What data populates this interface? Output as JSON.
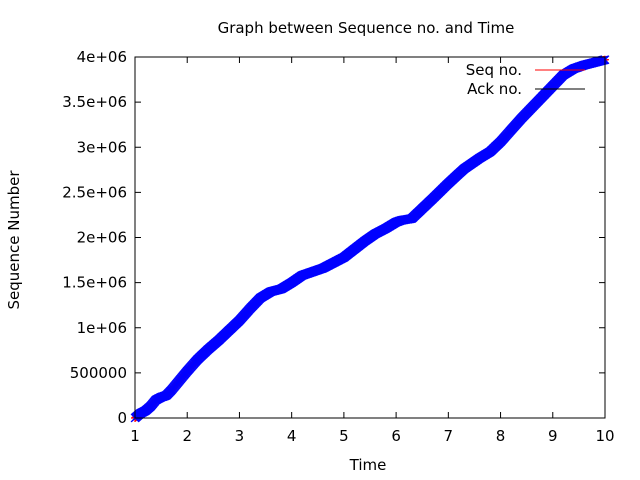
{
  "chart_data": {
    "type": "scatter",
    "title": "Graph between Sequence no. and Time",
    "xlabel": "Time",
    "ylabel": "Sequence Number",
    "xlim": [
      1,
      10
    ],
    "ylim": [
      0,
      4000000
    ],
    "x_ticks": [
      1,
      2,
      3,
      4,
      5,
      6,
      7,
      8,
      9,
      10
    ],
    "x_tick_labels": [
      "1",
      "2",
      "3",
      "4",
      "5",
      "6",
      "7",
      "8",
      "9",
      "10"
    ],
    "y_ticks": [
      0,
      500000,
      1000000,
      1500000,
      2000000,
      2500000,
      3000000,
      3500000,
      4000000
    ],
    "y_tick_labels": [
      "0",
      "500000",
      "1e+06",
      "1.5e+06",
      "2e+06",
      "2.5e+06",
      "3e+06",
      "3.5e+06",
      "4e+06"
    ],
    "grid": false,
    "legend_position": "top-right",
    "series": [
      {
        "name": "Seq no.",
        "color": "#ff0000",
        "marker": "plus",
        "x": [
          1.0,
          1.1,
          1.2,
          1.3,
          1.4,
          1.5,
          1.6,
          1.7,
          1.8,
          1.9,
          2.0,
          2.2,
          2.4,
          2.6,
          2.8,
          3.0,
          3.2,
          3.4,
          3.6,
          3.8,
          4.0,
          4.2,
          4.4,
          4.6,
          4.8,
          5.0,
          5.2,
          5.4,
          5.6,
          5.8,
          6.0,
          6.1,
          6.3,
          6.5,
          6.7,
          7.0,
          7.3,
          7.6,
          7.8,
          8.0,
          8.2,
          8.4,
          8.6,
          8.8,
          9.0,
          9.2,
          9.4,
          9.6,
          9.8,
          10.0
        ],
        "y": [
          0,
          50000,
          80000,
          130000,
          200000,
          230000,
          250000,
          310000,
          380000,
          450000,
          520000,
          650000,
          760000,
          860000,
          970000,
          1080000,
          1210000,
          1330000,
          1400000,
          1430000,
          1500000,
          1580000,
          1620000,
          1660000,
          1720000,
          1780000,
          1870000,
          1960000,
          2040000,
          2100000,
          2170000,
          2190000,
          2210000,
          2320000,
          2430000,
          2600000,
          2760000,
          2880000,
          2950000,
          3060000,
          3190000,
          3320000,
          3440000,
          3560000,
          3680000,
          3800000,
          3870000,
          3910000,
          3940000,
          3970000
        ]
      },
      {
        "name": "Ack no.",
        "color": "#0000ff",
        "marker": "x",
        "x": [
          1.0,
          1.1,
          1.2,
          1.3,
          1.4,
          1.5,
          1.6,
          1.7,
          1.8,
          1.9,
          2.0,
          2.2,
          2.4,
          2.6,
          2.8,
          3.0,
          3.2,
          3.4,
          3.6,
          3.8,
          4.0,
          4.2,
          4.4,
          4.6,
          4.8,
          5.0,
          5.2,
          5.4,
          5.6,
          5.8,
          6.0,
          6.1,
          6.3,
          6.5,
          6.7,
          7.0,
          7.3,
          7.6,
          7.8,
          8.0,
          8.2,
          8.4,
          8.6,
          8.8,
          9.0,
          9.2,
          9.4,
          9.6,
          9.8,
          10.0
        ],
        "y": [
          0,
          50000,
          80000,
          130000,
          200000,
          230000,
          250000,
          310000,
          380000,
          450000,
          520000,
          650000,
          760000,
          860000,
          970000,
          1080000,
          1210000,
          1330000,
          1400000,
          1430000,
          1500000,
          1580000,
          1620000,
          1660000,
          1720000,
          1780000,
          1870000,
          1960000,
          2040000,
          2100000,
          2170000,
          2190000,
          2210000,
          2320000,
          2430000,
          2600000,
          2760000,
          2880000,
          2950000,
          3060000,
          3190000,
          3320000,
          3440000,
          3560000,
          3680000,
          3800000,
          3870000,
          3910000,
          3940000,
          3970000
        ]
      }
    ]
  }
}
